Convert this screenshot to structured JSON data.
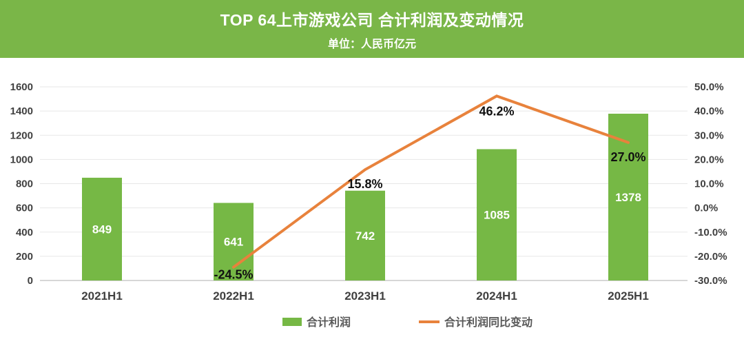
{
  "header": {
    "title": "TOP 64上市游戏公司 合计利润及变动情况",
    "subtitle": "单位：人民币亿元",
    "bg_color": "#7ab648",
    "text_color": "#ffffff"
  },
  "chart_data": {
    "type": "bar+line combo",
    "categories": [
      "2021H1",
      "2022H1",
      "2023H1",
      "2024H1",
      "2025H1"
    ],
    "series": [
      {
        "name": "合计利润",
        "type": "bar",
        "axis": "left",
        "color": "#76b845",
        "values": [
          849,
          641,
          742,
          1085,
          1378
        ],
        "data_labels": [
          "849",
          "641",
          "742",
          "1085",
          "1378"
        ],
        "data_label_color": "#ffffff"
      },
      {
        "name": "合计利润同比变动",
        "type": "line",
        "axis": "right",
        "color": "#e8823c",
        "values": [
          null,
          -24.5,
          15.8,
          46.2,
          27.0
        ],
        "data_labels": [
          null,
          "-24.5%",
          "15.8%",
          "46.2%",
          "27.0%"
        ],
        "data_label_color": "#111111"
      }
    ],
    "left_axis": {
      "min": 0,
      "max": 1600,
      "step": 200,
      "ticks": [
        "0",
        "200",
        "400",
        "600",
        "800",
        "1000",
        "1200",
        "1400",
        "1600"
      ]
    },
    "right_axis": {
      "min": -30,
      "max": 50,
      "step": 10,
      "ticks": [
        "-30.0%",
        "-20.0%",
        "-10.0%",
        "0.0%",
        "10.0%",
        "20.0%",
        "30.0%",
        "40.0%",
        "50.0%"
      ]
    },
    "grid": "horizontal gridlines on",
    "legend": {
      "position": "bottom-center",
      "items": [
        {
          "label": "合计利润",
          "color": "#76b845",
          "marker": "rect"
        },
        {
          "label": "合计利润同比变动",
          "color": "#e8823c",
          "marker": "line"
        }
      ]
    }
  }
}
